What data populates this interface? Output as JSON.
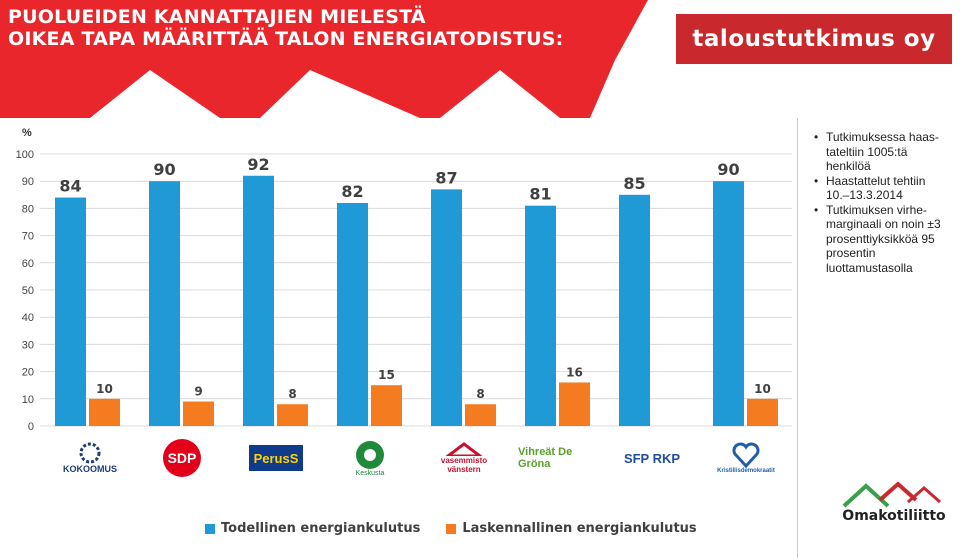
{
  "header": {
    "title_line1": "PUOLUEIDEN KANNATTAJIEN MIELESTÄ",
    "title_line2": "OIKEA TAPA MÄÄRITTÄÄ TALON ENERGIATODISTUS:",
    "brand": "taloustutkimus oy",
    "header_color": "#e8262c",
    "brand_color": "#c9282d"
  },
  "notes": [
    "Tutkimuksessa haas-tateltiin 1005:tä henkilöä",
    "Haastattelut tehtiin 10.–13.3.2014",
    "Tutkimuksen virhe-marginaali on noin ±3 prosenttiyksikköä 95 prosentin luottamustasolla"
  ],
  "party_logos": [
    {
      "name": "kokoomus-logo",
      "text": "KOKOOMUS",
      "color": "#1b3f7a"
    },
    {
      "name": "sdp-logo",
      "text": "SDP",
      "color": "#e2001a"
    },
    {
      "name": "perussuomalaiset-logo",
      "text": "PerusS",
      "color": "#0f3b8a"
    },
    {
      "name": "keskusta-logo",
      "text": "Keskusta",
      "color": "#1f8a3a"
    },
    {
      "name": "vasemmisto-logo",
      "text": "vasemmisto vänstern",
      "color": "#c8102e"
    },
    {
      "name": "vihreat-logo",
      "text": "Vihreät De Gröna",
      "color": "#5aa02c"
    },
    {
      "name": "sfp-rkp-logo",
      "text": "SFP RKP",
      "color": "#1f4e9e"
    },
    {
      "name": "kristillisdemokraatit-logo",
      "text": "Kristillisdemokraatit",
      "color": "#1f5fa8"
    }
  ],
  "footer_logo": {
    "text": "Omakotiliitto"
  },
  "chart_data": {
    "type": "bar",
    "ylabel": "%",
    "ylim": [
      0,
      100
    ],
    "yticks": [
      0,
      10,
      20,
      30,
      40,
      50,
      60,
      70,
      80,
      90,
      100
    ],
    "grid": true,
    "legend_position": "bottom",
    "categories": [
      "Kokoomus",
      "SDP",
      "Perussuomalaiset",
      "Keskusta",
      "Vasemmistoliitto",
      "Vihreät",
      "RKP",
      "Kristillisdemokraatit"
    ],
    "series": [
      {
        "name": "Todellinen energiankulutus",
        "color": "#1f9ad6",
        "values": [
          84,
          90,
          92,
          82,
          87,
          81,
          85,
          90
        ]
      },
      {
        "name": "Laskennallinen energiankulutus",
        "color": "#f47b20",
        "values": [
          10,
          9,
          8,
          15,
          8,
          16,
          null,
          10
        ]
      }
    ]
  }
}
